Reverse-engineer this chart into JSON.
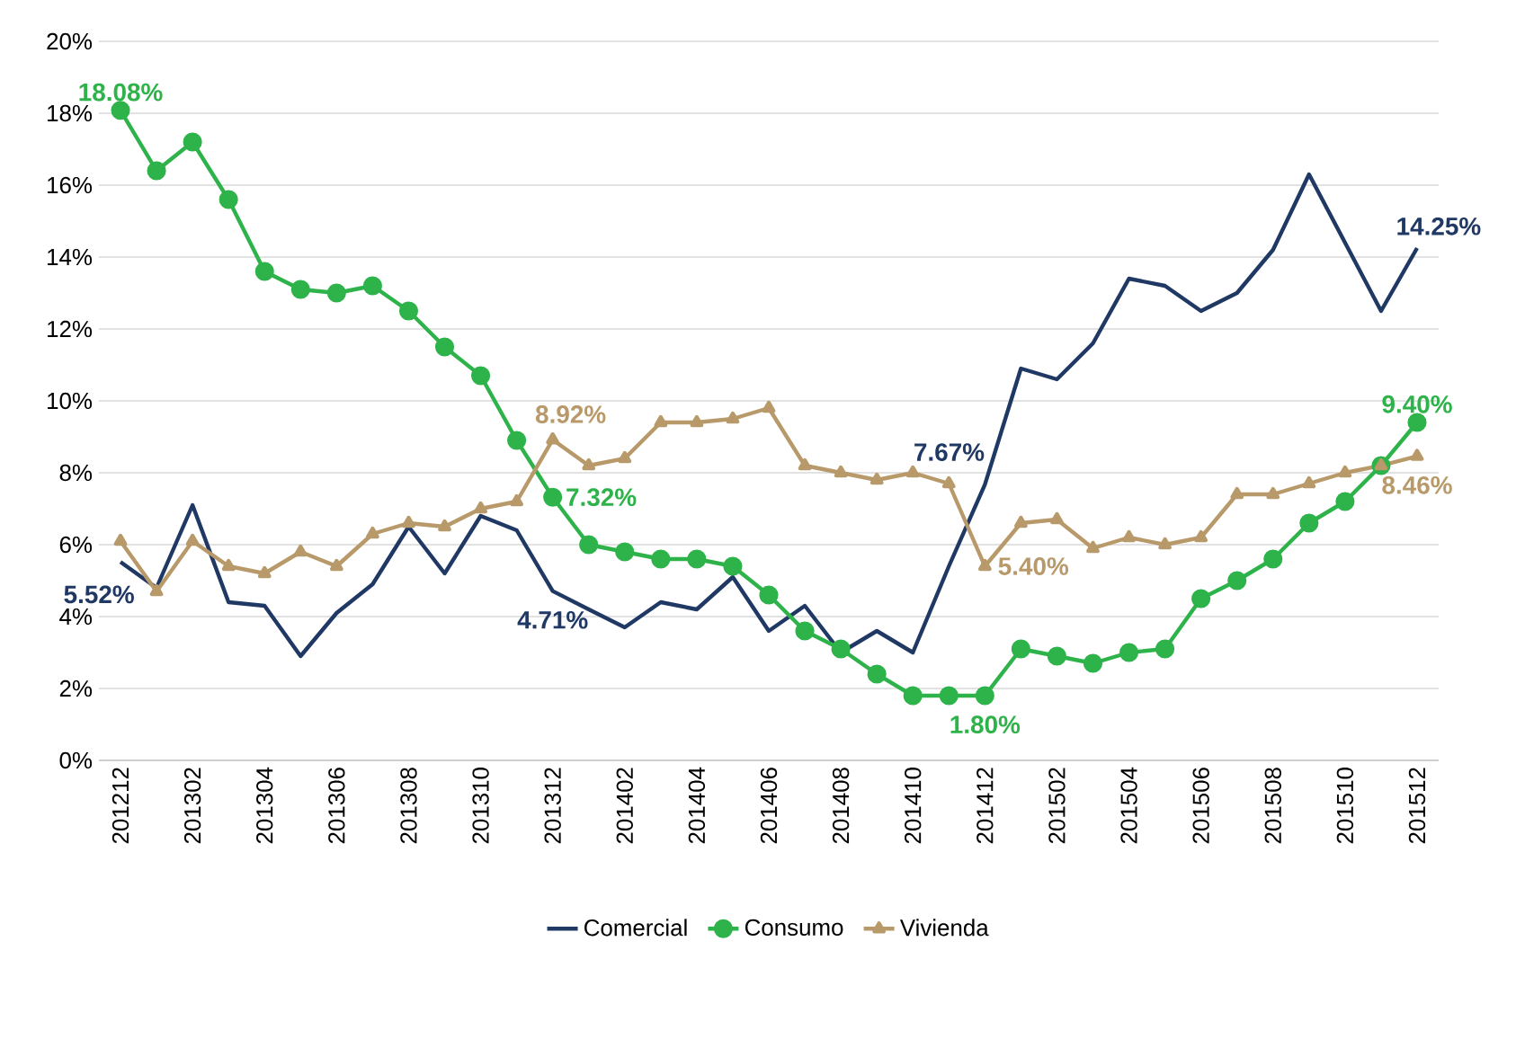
{
  "chart_data": {
    "type": "line",
    "categories": [
      "201212",
      null,
      "201302",
      null,
      "201304",
      null,
      "201306",
      null,
      "201308",
      null,
      "201310",
      null,
      "201312",
      null,
      "201402",
      null,
      "201404",
      null,
      "201406",
      null,
      "201408",
      null,
      "201410",
      null,
      "201412",
      null,
      "201502",
      null,
      "201504",
      null,
      "201506",
      null,
      "201508",
      null,
      "201510",
      null,
      "201512"
    ],
    "series": [
      {
        "name": "Comercial",
        "color": "#1f3864",
        "marker": "none",
        "values": [
          5.52,
          4.8,
          7.1,
          4.4,
          4.3,
          2.9,
          4.1,
          4.9,
          6.5,
          5.2,
          6.8,
          6.4,
          4.71,
          4.2,
          3.7,
          4.4,
          4.2,
          5.1,
          3.6,
          4.3,
          3.0,
          3.6,
          3.0,
          5.4,
          7.67,
          10.9,
          10.6,
          11.6,
          13.4,
          13.2,
          12.5,
          13.0,
          14.2,
          16.3,
          14.4,
          12.5,
          14.25
        ],
        "value_labels": [
          "5.52%",
          null,
          null,
          null,
          null,
          null,
          null,
          null,
          null,
          null,
          null,
          null,
          "4.71%",
          null,
          null,
          null,
          null,
          null,
          null,
          null,
          null,
          null,
          null,
          null,
          "7.67%",
          null,
          null,
          null,
          null,
          null,
          null,
          null,
          null,
          null,
          null,
          null,
          "14.25%"
        ]
      },
      {
        "name": "Consumo",
        "color": "#2db34a",
        "marker": "circle",
        "values": [
          18.08,
          16.4,
          17.2,
          15.6,
          13.6,
          13.1,
          13.0,
          13.2,
          12.5,
          11.5,
          10.7,
          8.9,
          7.32,
          6.0,
          5.8,
          5.6,
          5.6,
          5.4,
          4.6,
          3.6,
          3.1,
          2.4,
          1.8,
          1.8,
          1.8,
          3.1,
          2.9,
          2.7,
          3.0,
          3.1,
          4.5,
          5.0,
          5.6,
          6.6,
          7.2,
          8.2,
          9.4
        ],
        "value_labels": [
          "18.08%",
          null,
          null,
          null,
          null,
          null,
          null,
          null,
          null,
          null,
          null,
          null,
          "7.32%",
          null,
          null,
          null,
          null,
          null,
          null,
          null,
          null,
          null,
          null,
          null,
          "1.80%",
          null,
          null,
          null,
          null,
          null,
          null,
          null,
          null,
          null,
          null,
          null,
          "9.40%"
        ]
      },
      {
        "name": "Vivienda",
        "color": "#b8996a",
        "marker": "triangle",
        "values": [
          6.1,
          4.7,
          6.1,
          5.4,
          5.2,
          5.8,
          5.4,
          6.3,
          6.6,
          6.5,
          7.0,
          7.2,
          8.92,
          8.2,
          8.4,
          9.4,
          9.4,
          9.5,
          9.8,
          8.2,
          8.0,
          7.8,
          8.0,
          7.7,
          5.4,
          6.6,
          6.7,
          5.9,
          6.2,
          6.0,
          6.2,
          7.4,
          7.4,
          7.7,
          8.0,
          8.2,
          8.46
        ],
        "value_labels": [
          null,
          null,
          null,
          null,
          null,
          null,
          null,
          null,
          null,
          null,
          null,
          null,
          "8.92%",
          null,
          null,
          null,
          null,
          null,
          null,
          null,
          null,
          null,
          null,
          null,
          "5.40%",
          null,
          null,
          null,
          null,
          null,
          null,
          null,
          null,
          null,
          null,
          null,
          "8.46%"
        ]
      }
    ],
    "ylim": [
      0,
      20
    ],
    "yticks": [
      {
        "value": 0,
        "label": "0%"
      },
      {
        "value": 2,
        "label": "2%"
      },
      {
        "value": 4,
        "label": "4%"
      },
      {
        "value": 6,
        "label": "6%"
      },
      {
        "value": 8,
        "label": "8%"
      },
      {
        "value": 10,
        "label": "10%"
      },
      {
        "value": 12,
        "label": "12%"
      },
      {
        "value": 14,
        "label": "14%"
      },
      {
        "value": 16,
        "label": "16%"
      },
      {
        "value": 18,
        "label": "18%"
      },
      {
        "value": 20,
        "label": "20%"
      }
    ],
    "grid": "y",
    "legend": "bottom"
  }
}
